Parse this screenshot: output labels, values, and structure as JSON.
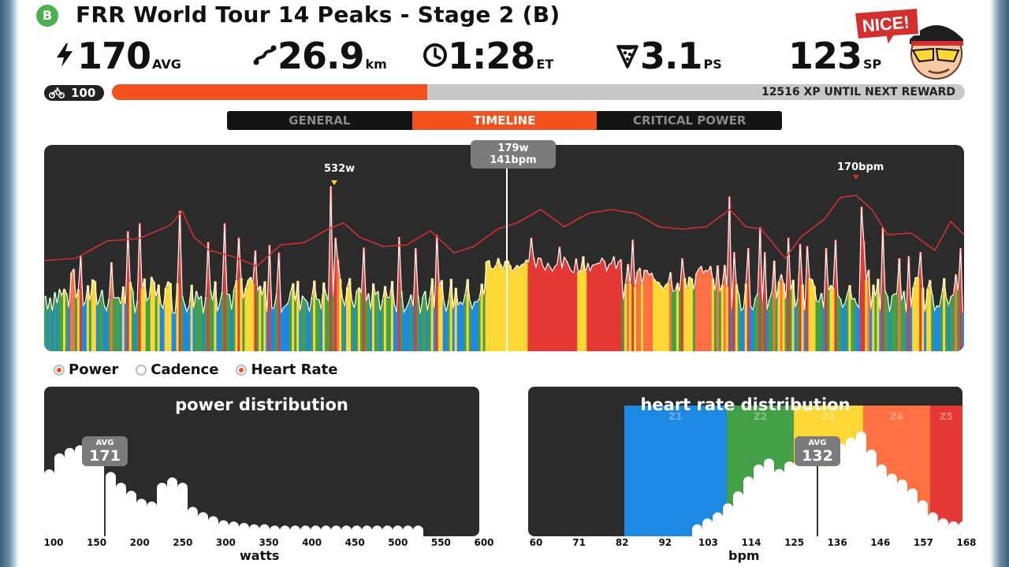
{
  "header": {
    "category": "B",
    "title": "FRR World Tour 14 Peaks - Stage 2 (B)"
  },
  "stats": {
    "power": {
      "value": "170",
      "unit": "AVG",
      "icon": "lightning-icon"
    },
    "distance": {
      "value": "26.9",
      "unit": "km",
      "icon": "route-icon"
    },
    "time": {
      "value": "1:28",
      "unit": "ET",
      "icon": "clock-icon"
    },
    "pizza": {
      "value": "3.1",
      "unit": "PS",
      "icon": "pizza-icon"
    },
    "sport_points": {
      "value": "123",
      "unit": "SP"
    }
  },
  "badge": {
    "text": "NICE!"
  },
  "level": {
    "value": "100",
    "xp_progress": 0.37,
    "xp_text": "12516 XP UNTIL NEXT REWARD"
  },
  "tabs": [
    {
      "label": "GENERAL",
      "active": false
    },
    {
      "label": "TIMELINE",
      "active": true
    },
    {
      "label": "CRITICAL POWER",
      "active": false
    }
  ],
  "timeline": {
    "peak_power_label": "532w",
    "peak_hr_label": "170bpm",
    "cursor_power": "179w",
    "cursor_hr": "141bpm"
  },
  "legend": [
    {
      "label": "Power",
      "on": true
    },
    {
      "label": "Cadence",
      "on": false
    },
    {
      "label": "Heart Rate",
      "on": true
    }
  ],
  "power_distribution": {
    "title": "power distribution",
    "avg_label": "AVG",
    "avg_value": "171",
    "axis_title": "watts",
    "ticks": [
      "100",
      "150",
      "200",
      "250",
      "300",
      "350",
      "400",
      "450",
      "500",
      "550",
      "600"
    ]
  },
  "hr_distribution": {
    "title": "heart rate distribution",
    "avg_label": "AVG",
    "avg_value": "132",
    "axis_title": "bpm",
    "ticks": [
      "60",
      "71",
      "82",
      "92",
      "103",
      "114",
      "125",
      "136",
      "146",
      "157",
      "168"
    ],
    "zones": [
      "Z1",
      "Z2",
      "Z3",
      "Z4",
      "Z5"
    ]
  },
  "colors": {
    "accent": "#f4511e",
    "zone_blue": "#1e88e5",
    "zone_green": "#43a047",
    "zone_yellow": "#fdd835",
    "zone_orange": "#ff7043",
    "zone_red": "#e53935",
    "panel_bg": "#2b2b2b"
  }
}
